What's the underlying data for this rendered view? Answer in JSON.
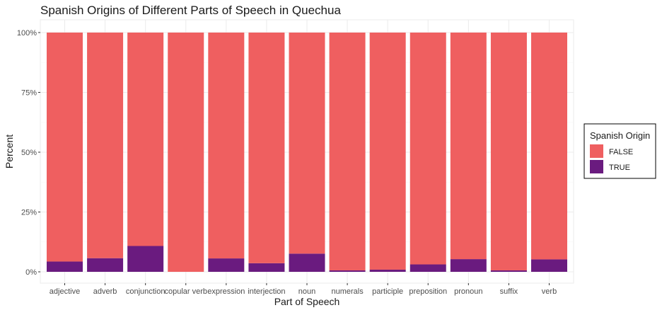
{
  "chart_data": {
    "type": "bar",
    "stacked": true,
    "normalized": true,
    "title": "Spanish Origins of Different Parts of Speech in Quechua",
    "xlabel": "Part of Speech",
    "ylabel": "Percent",
    "categories": [
      "adjective",
      "adverb",
      "conjunction",
      "copular verb",
      "expression",
      "interjection",
      "noun",
      "numerals",
      "participle",
      "preposition",
      "pronoun",
      "suffix",
      "verb"
    ],
    "series": [
      {
        "name": "TRUE",
        "color": "#6a1b7f",
        "values": [
          4.3,
          5.7,
          10.8,
          0.0,
          5.6,
          3.6,
          7.6,
          0.6,
          0.9,
          3.1,
          5.3,
          0.6,
          5.2
        ]
      },
      {
        "name": "FALSE",
        "color": "#ef5f60",
        "values": [
          95.7,
          94.3,
          89.2,
          100.0,
          94.4,
          96.4,
          92.4,
          99.4,
          99.1,
          96.9,
          94.7,
          99.4,
          94.8
        ]
      }
    ],
    "ylim": [
      0,
      100
    ],
    "yticks": [
      0,
      25,
      50,
      75,
      100
    ],
    "ytick_labels": [
      "0%",
      "25%",
      "50%",
      "75%",
      "100%"
    ],
    "grid": true,
    "legend": {
      "title": "Spanish Origin",
      "position": "right",
      "entries": [
        {
          "label": "FALSE",
          "color": "#ef5f60"
        },
        {
          "label": "TRUE",
          "color": "#6a1b7f"
        }
      ]
    }
  }
}
